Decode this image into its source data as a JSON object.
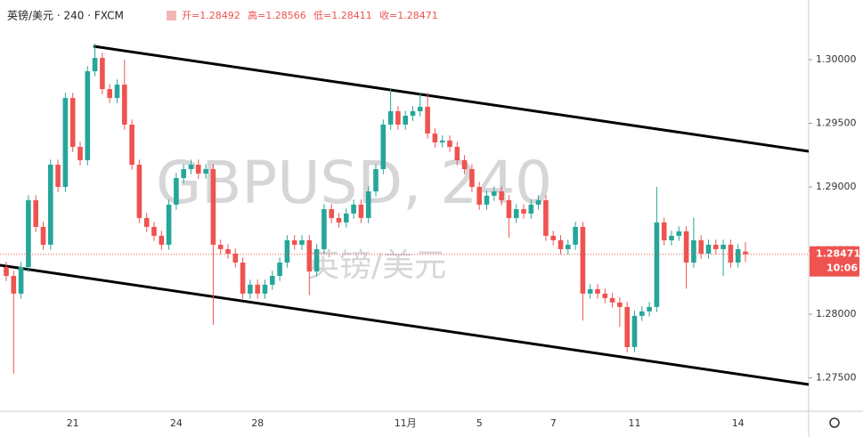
{
  "chart_data": {
    "type": "candlestick",
    "title": "英镑/美元 · 240 · FXCM",
    "ohlc_legend": [
      "开=1.28492",
      "高=1.28566",
      "低=1.28411",
      "收=1.28471"
    ],
    "watermark": "GBPUSD, 240",
    "watermark_subtitle": "英镑/美元",
    "categories": [
      null,
      null,
      null,
      null,
      null,
      null,
      null,
      null,
      null,
      "21",
      null,
      null,
      null,
      null,
      null,
      null,
      null,
      null,
      null,
      null,
      null,
      null,
      null,
      "24",
      null,
      null,
      null,
      null,
      null,
      null,
      null,
      null,
      null,
      null,
      "28",
      null,
      null,
      null,
      null,
      null,
      null,
      null,
      null,
      null,
      null,
      null,
      null,
      null,
      null,
      null,
      null,
      null,
      null,
      null,
      "11月",
      null,
      null,
      null,
      null,
      null,
      null,
      null,
      null,
      null,
      "5",
      null,
      null,
      null,
      null,
      null,
      null,
      null,
      null,
      null,
      "7",
      null,
      null,
      null,
      null,
      null,
      null,
      null,
      null,
      null,
      null,
      "11",
      null,
      null,
      null,
      null,
      null,
      null,
      null,
      null,
      null,
      null,
      null,
      null,
      null,
      "14",
      null
    ],
    "open": [
      1.28371,
      1.28301,
      1.28162,
      1.28371,
      1.28896,
      1.28686,
      1.28546,
      1.29175,
      1.29,
      1.29699,
      1.29315,
      1.2921,
      1.29909,
      1.30014,
      1.29769,
      1.29699,
      1.29804,
      1.2949,
      1.29175,
      1.28756,
      1.28686,
      1.28616,
      1.28546,
      1.28861,
      1.2907,
      1.2914,
      1.29175,
      1.29105,
      1.2914,
      1.28546,
      1.28511,
      1.28476,
      1.28406,
      1.28162,
      1.28232,
      1.28162,
      1.28232,
      1.28301,
      1.28406,
      1.28581,
      1.28546,
      1.28581,
      1.28336,
      1.28511,
      1.28826,
      1.28756,
      1.28721,
      1.28791,
      1.28861,
      1.28756,
      1.28965,
      1.2914,
      1.2949,
      1.29595,
      1.2949,
      1.2956,
      1.29595,
      1.2963,
      1.2942,
      1.2935,
      1.29365,
      1.29315,
      1.2921,
      1.2914,
      1.29,
      1.28861,
      1.28931,
      1.28965,
      1.28896,
      1.28756,
      1.28826,
      1.28791,
      1.28861,
      1.28896,
      1.28616,
      1.28581,
      1.28511,
      1.28546,
      1.28686,
      1.28162,
      1.28197,
      1.28162,
      1.28127,
      1.28092,
      1.28057,
      1.27742,
      1.27987,
      1.28022,
      1.28057,
      1.28721,
      1.28581,
      1.28616,
      1.28651,
      1.28406,
      1.28581,
      1.28476,
      1.28546,
      1.28511,
      1.28546,
      1.28406,
      1.28492
    ],
    "high": [
      1.28411,
      1.28341,
      1.28411,
      1.28936,
      1.28936,
      1.28726,
      1.29215,
      1.29215,
      1.29739,
      1.29739,
      1.29355,
      1.29949,
      1.30126,
      1.30054,
      1.29809,
      1.29844,
      1.3,
      1.2953,
      1.29215,
      1.28796,
      1.28726,
      1.28656,
      1.28901,
      1.2911,
      1.2918,
      1.29215,
      1.29215,
      1.2918,
      1.2918,
      1.28586,
      1.28551,
      1.28516,
      1.28446,
      1.28272,
      1.28272,
      1.28272,
      1.28341,
      1.28446,
      1.28621,
      1.28621,
      1.28621,
      1.28621,
      1.28551,
      1.28866,
      1.28866,
      1.28796,
      1.28831,
      1.28901,
      1.28901,
      1.29005,
      1.2918,
      1.2953,
      1.2977,
      1.29635,
      1.296,
      1.29635,
      1.2974,
      1.2974,
      1.2946,
      1.29405,
      1.29405,
      1.29355,
      1.2925,
      1.2918,
      1.2904,
      1.28971,
      1.29005,
      1.29005,
      1.28936,
      1.28866,
      1.28866,
      1.28901,
      1.28936,
      1.28936,
      1.28656,
      1.28621,
      1.28586,
      1.28726,
      1.28726,
      1.28237,
      1.28237,
      1.28202,
      1.28167,
      1.28132,
      1.28097,
      1.28027,
      1.28062,
      1.28097,
      1.29,
      1.28761,
      1.28656,
      1.28691,
      1.28691,
      1.2876,
      1.28621,
      1.28586,
      1.28586,
      1.28586,
      1.28586,
      1.28551,
      1.28566
    ],
    "low": [
      1.28261,
      1.27533,
      1.28122,
      1.28331,
      1.28646,
      1.28506,
      1.28506,
      1.2896,
      1.2896,
      1.29275,
      1.2917,
      1.2917,
      1.29869,
      1.29729,
      1.29659,
      1.29659,
      1.2945,
      1.29135,
      1.28716,
      1.28646,
      1.28576,
      1.28506,
      1.28506,
      1.28821,
      1.2903,
      1.291,
      1.29065,
      1.29065,
      1.27917,
      1.28471,
      1.28436,
      1.28366,
      1.28122,
      1.28122,
      1.28122,
      1.28122,
      1.28192,
      1.28261,
      1.28366,
      1.28506,
      1.28506,
      1.2815,
      1.28296,
      1.28471,
      1.28716,
      1.28681,
      1.28681,
      1.28751,
      1.28716,
      1.28716,
      1.28925,
      1.291,
      1.2945,
      1.2945,
      1.2945,
      1.2952,
      1.29555,
      1.2938,
      1.2931,
      1.2931,
      1.29275,
      1.2917,
      1.291,
      1.2896,
      1.28821,
      1.28821,
      1.28891,
      1.28856,
      1.286,
      1.28716,
      1.28751,
      1.28751,
      1.28821,
      1.28576,
      1.28541,
      1.28471,
      1.28471,
      1.28506,
      1.2795,
      1.28122,
      1.28122,
      1.28087,
      1.28052,
      1.279,
      1.277,
      1.27702,
      1.27947,
      1.27982,
      1.28017,
      1.28541,
      1.28541,
      1.28576,
      1.282,
      1.28366,
      1.28436,
      1.28436,
      1.28471,
      1.283,
      1.28366,
      1.28366,
      1.28411
    ],
    "close": [
      1.28301,
      1.28162,
      1.28371,
      1.28896,
      1.28686,
      1.28546,
      1.29175,
      1.29,
      1.29699,
      1.29315,
      1.2921,
      1.29909,
      1.30014,
      1.29769,
      1.29699,
      1.29804,
      1.2949,
      1.29175,
      1.28756,
      1.28686,
      1.28616,
      1.28546,
      1.28861,
      1.2907,
      1.2914,
      1.29175,
      1.29105,
      1.2914,
      1.28546,
      1.28511,
      1.28476,
      1.28406,
      1.28162,
      1.28232,
      1.28162,
      1.28232,
      1.28301,
      1.28406,
      1.28581,
      1.28546,
      1.28581,
      1.28336,
      1.28511,
      1.28826,
      1.28756,
      1.28721,
      1.28791,
      1.28861,
      1.28756,
      1.28965,
      1.2914,
      1.2949,
      1.29595,
      1.2949,
      1.2956,
      1.29595,
      1.2963,
      1.2942,
      1.2935,
      1.29365,
      1.29315,
      1.2921,
      1.2914,
      1.29,
      1.28861,
      1.28931,
      1.28965,
      1.28896,
      1.28756,
      1.28826,
      1.28791,
      1.28861,
      1.28896,
      1.28616,
      1.28581,
      1.28511,
      1.28546,
      1.28686,
      1.28162,
      1.28197,
      1.28162,
      1.28127,
      1.28092,
      1.28057,
      1.27742,
      1.27987,
      1.28022,
      1.28057,
      1.28721,
      1.28581,
      1.28616,
      1.28651,
      1.28406,
      1.28581,
      1.28476,
      1.28546,
      1.28511,
      1.28546,
      1.28406,
      1.28511,
      1.28471
    ],
    "up_color": "#26a69a",
    "down_color": "#ef5350",
    "ylim": [
      1.27238,
      1.30469
    ],
    "yticks": [
      {
        "value": 1.275,
        "label": "1.27500"
      },
      {
        "value": 1.28,
        "label": "1.28000"
      },
      {
        "value": 1.285,
        "label": "1.28500"
      },
      {
        "value": 1.29,
        "label": "1.29000"
      },
      {
        "value": 1.295,
        "label": "1.29500"
      },
      {
        "value": 1.3,
        "label": "1.30000"
      }
    ],
    "last_price": 1.28471,
    "last_price_time": "10:06",
    "grid": false
  }
}
